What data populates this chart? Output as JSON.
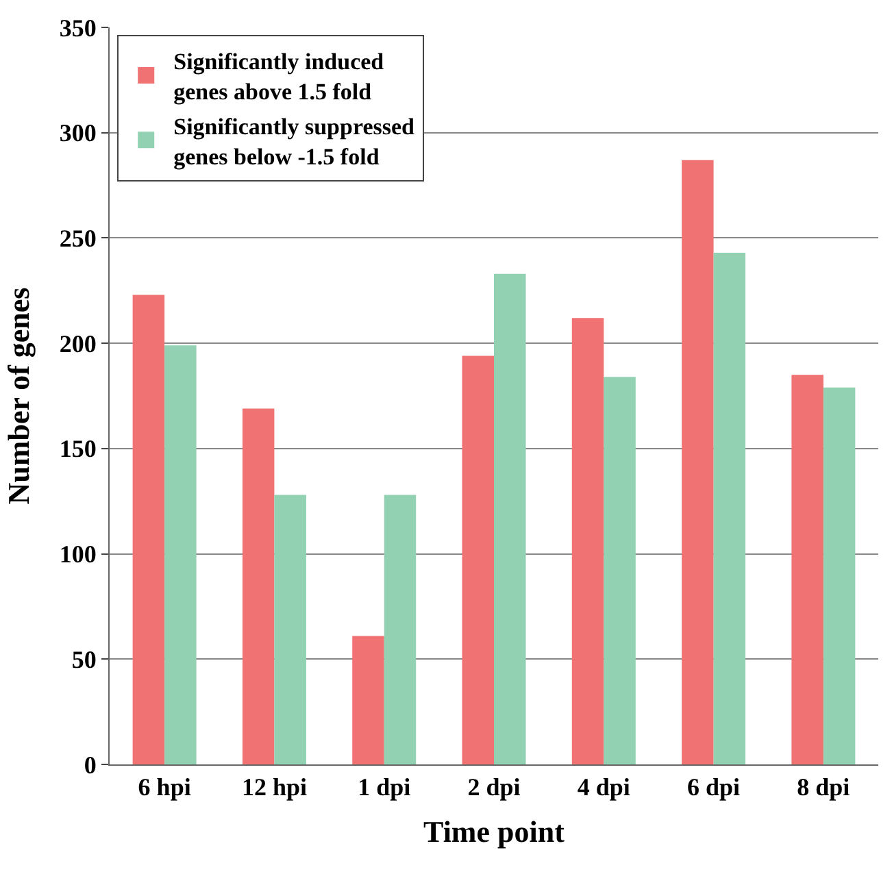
{
  "chart_data": {
    "type": "bar",
    "xlabel": "Time point",
    "ylabel": "Number of genes",
    "categories": [
      "6 hpi",
      "12 hpi",
      "1 dpi",
      "2 dpi",
      "4 dpi",
      "6 dpi",
      "8 dpi"
    ],
    "series": [
      {
        "name": "Significantly induced genes above 1.5 fold",
        "color": "#f07272",
        "values": [
          223,
          169,
          61,
          194,
          212,
          287,
          185
        ]
      },
      {
        "name": "Significantly suppressed genes below -1.5 fold",
        "color": "#93d1b3",
        "values": [
          199,
          128,
          128,
          233,
          184,
          243,
          179
        ]
      }
    ],
    "ylim": [
      0,
      350
    ],
    "yticks": [
      0,
      50,
      100,
      150,
      200,
      250,
      300,
      350
    ],
    "grid": "y",
    "legend": "top left"
  }
}
